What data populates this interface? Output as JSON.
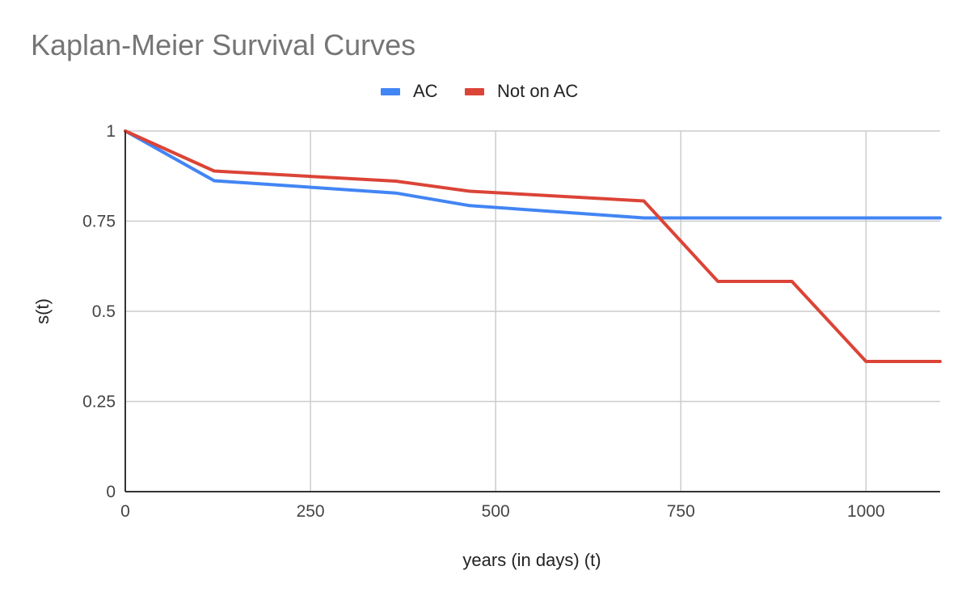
{
  "chart_data": {
    "type": "line",
    "title": "Kaplan-Meier Survival Curves",
    "xlabel": "years (in days) (t)",
    "ylabel": "s(t)",
    "xlim": [
      0,
      1100
    ],
    "ylim": [
      0,
      1
    ],
    "x_ticks": [
      0,
      250,
      500,
      750,
      1000
    ],
    "y_ticks": [
      0,
      0.25,
      0.5,
      0.75,
      1
    ],
    "x_tick_labels": [
      "0",
      "250",
      "500",
      "750",
      "1000"
    ],
    "y_tick_labels": [
      "0",
      "0.25",
      "0.5",
      "0.75",
      "1"
    ],
    "grid": true,
    "legend_position": "top-center",
    "series": [
      {
        "name": "AC",
        "color": "#4285f4",
        "points": [
          [
            0,
            1
          ],
          [
            120,
            0.862
          ],
          [
            365,
            0.828
          ],
          [
            465,
            0.793
          ],
          [
            700,
            0.759
          ],
          [
            1100,
            0.759
          ]
        ]
      },
      {
        "name": "Not on AC",
        "color": "#db4437",
        "points": [
          [
            0,
            1
          ],
          [
            120,
            0.889
          ],
          [
            365,
            0.861
          ],
          [
            465,
            0.833
          ],
          [
            700,
            0.806
          ],
          [
            800,
            0.583
          ],
          [
            900,
            0.583
          ],
          [
            1000,
            0.361
          ],
          [
            1100,
            0.361
          ]
        ]
      }
    ]
  }
}
